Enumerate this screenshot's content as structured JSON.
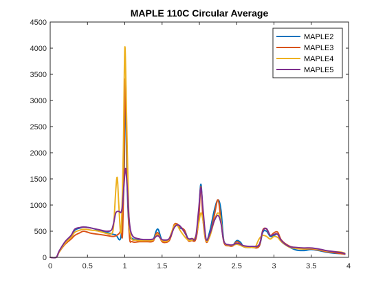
{
  "chart_data": {
    "type": "line",
    "title": "MAPLE 110C Circular Average",
    "xlabel": "",
    "ylabel": "",
    "xlim": [
      0,
      4
    ],
    "ylim": [
      0,
      4500
    ],
    "xticks": [
      "0",
      "0.5",
      "1",
      "1.5",
      "2",
      "2.5",
      "3",
      "3.5",
      "4"
    ],
    "yticks": [
      "0",
      "500",
      "1000",
      "1500",
      "2000",
      "2500",
      "3000",
      "3500",
      "4000",
      "4500"
    ],
    "grid": false,
    "legend_position": "top-right",
    "series": [
      {
        "name": "MAPLE2",
        "color": "#0072BD",
        "points": [
          [
            0,
            0
          ],
          [
            0.08,
            0
          ],
          [
            0.12,
            100
          ],
          [
            0.2,
            280
          ],
          [
            0.28,
            400
          ],
          [
            0.33,
            520
          ],
          [
            0.4,
            560
          ],
          [
            0.45,
            580
          ],
          [
            0.55,
            560
          ],
          [
            0.65,
            520
          ],
          [
            0.75,
            480
          ],
          [
            0.82,
            450
          ],
          [
            0.88,
            430
          ],
          [
            0.95,
            410
          ],
          [
            0.99,
            1500
          ],
          [
            1.01,
            3300
          ],
          [
            1.03,
            1500
          ],
          [
            1.06,
            500
          ],
          [
            1.1,
            360
          ],
          [
            1.2,
            340
          ],
          [
            1.3,
            330
          ],
          [
            1.38,
            340
          ],
          [
            1.42,
            500
          ],
          [
            1.45,
            530
          ],
          [
            1.5,
            330
          ],
          [
            1.58,
            320
          ],
          [
            1.62,
            430
          ],
          [
            1.66,
            590
          ],
          [
            1.7,
            620
          ],
          [
            1.74,
            560
          ],
          [
            1.8,
            520
          ],
          [
            1.85,
            350
          ],
          [
            1.9,
            340
          ],
          [
            1.95,
            360
          ],
          [
            1.99,
            800
          ],
          [
            2.02,
            1400
          ],
          [
            2.05,
            800
          ],
          [
            2.09,
            330
          ],
          [
            2.14,
            500
          ],
          [
            2.2,
            900
          ],
          [
            2.25,
            1100
          ],
          [
            2.29,
            900
          ],
          [
            2.33,
            300
          ],
          [
            2.4,
            230
          ],
          [
            2.45,
            230
          ],
          [
            2.5,
            320
          ],
          [
            2.55,
            290
          ],
          [
            2.6,
            200
          ],
          [
            2.7,
            190
          ],
          [
            2.8,
            210
          ],
          [
            2.85,
            480
          ],
          [
            2.9,
            500
          ],
          [
            2.95,
            400
          ],
          [
            3.0,
            420
          ],
          [
            3.05,
            440
          ],
          [
            3.1,
            300
          ],
          [
            3.2,
            200
          ],
          [
            3.3,
            140
          ],
          [
            3.4,
            130
          ],
          [
            3.5,
            150
          ],
          [
            3.6,
            130
          ],
          [
            3.7,
            100
          ],
          [
            3.8,
            80
          ],
          [
            3.9,
            70
          ],
          [
            3.95,
            60
          ]
        ]
      },
      {
        "name": "MAPLE3",
        "color": "#D95319",
        "points": [
          [
            0,
            0
          ],
          [
            0.08,
            0
          ],
          [
            0.12,
            100
          ],
          [
            0.2,
            250
          ],
          [
            0.28,
            350
          ],
          [
            0.33,
            420
          ],
          [
            0.4,
            470
          ],
          [
            0.45,
            500
          ],
          [
            0.55,
            460
          ],
          [
            0.65,
            440
          ],
          [
            0.75,
            420
          ],
          [
            0.85,
            400
          ],
          [
            0.92,
            450
          ],
          [
            0.95,
            520
          ],
          [
            0.97,
            450
          ],
          [
            0.99,
            1800
          ],
          [
            1.01,
            3420
          ],
          [
            1.03,
            1800
          ],
          [
            1.06,
            450
          ],
          [
            1.1,
            300
          ],
          [
            1.2,
            300
          ],
          [
            1.3,
            300
          ],
          [
            1.38,
            310
          ],
          [
            1.42,
            450
          ],
          [
            1.45,
            460
          ],
          [
            1.5,
            300
          ],
          [
            1.58,
            300
          ],
          [
            1.62,
            400
          ],
          [
            1.66,
            620
          ],
          [
            1.7,
            640
          ],
          [
            1.74,
            580
          ],
          [
            1.8,
            520
          ],
          [
            1.85,
            320
          ],
          [
            1.9,
            320
          ],
          [
            1.95,
            340
          ],
          [
            1.99,
            700
          ],
          [
            2.02,
            1350
          ],
          [
            2.05,
            700
          ],
          [
            2.09,
            300
          ],
          [
            2.14,
            420
          ],
          [
            2.2,
            800
          ],
          [
            2.25,
            1100
          ],
          [
            2.29,
            700
          ],
          [
            2.33,
            280
          ],
          [
            2.4,
            220
          ],
          [
            2.45,
            220
          ],
          [
            2.5,
            300
          ],
          [
            2.55,
            260
          ],
          [
            2.6,
            200
          ],
          [
            2.7,
            190
          ],
          [
            2.8,
            210
          ],
          [
            2.85,
            520
          ],
          [
            2.9,
            540
          ],
          [
            2.95,
            420
          ],
          [
            3.0,
            470
          ],
          [
            3.05,
            480
          ],
          [
            3.1,
            330
          ],
          [
            3.2,
            220
          ],
          [
            3.3,
            180
          ],
          [
            3.4,
            160
          ],
          [
            3.5,
            160
          ],
          [
            3.6,
            140
          ],
          [
            3.7,
            110
          ],
          [
            3.8,
            90
          ],
          [
            3.9,
            70
          ],
          [
            3.95,
            60
          ]
        ]
      },
      {
        "name": "MAPLE4",
        "color": "#EDB120",
        "points": [
          [
            0,
            0
          ],
          [
            0.08,
            0
          ],
          [
            0.12,
            100
          ],
          [
            0.2,
            270
          ],
          [
            0.28,
            380
          ],
          [
            0.33,
            480
          ],
          [
            0.4,
            520
          ],
          [
            0.45,
            540
          ],
          [
            0.55,
            520
          ],
          [
            0.65,
            500
          ],
          [
            0.75,
            460
          ],
          [
            0.82,
            450
          ],
          [
            0.85,
            600
          ],
          [
            0.88,
            1300
          ],
          [
            0.9,
            1520
          ],
          [
            0.92,
            1000
          ],
          [
            0.95,
            500
          ],
          [
            0.98,
            2000
          ],
          [
            1.0,
            4000
          ],
          [
            1.02,
            3000
          ],
          [
            1.05,
            1000
          ],
          [
            1.08,
            400
          ],
          [
            1.15,
            330
          ],
          [
            1.2,
            320
          ],
          [
            1.3,
            320
          ],
          [
            1.38,
            330
          ],
          [
            1.42,
            420
          ],
          [
            1.45,
            430
          ],
          [
            1.5,
            320
          ],
          [
            1.58,
            320
          ],
          [
            1.62,
            450
          ],
          [
            1.66,
            600
          ],
          [
            1.7,
            620
          ],
          [
            1.74,
            520
          ],
          [
            1.8,
            400
          ],
          [
            1.85,
            330
          ],
          [
            1.9,
            330
          ],
          [
            1.95,
            400
          ],
          [
            1.99,
            650
          ],
          [
            2.02,
            850
          ],
          [
            2.05,
            700
          ],
          [
            2.09,
            320
          ],
          [
            2.14,
            400
          ],
          [
            2.2,
            700
          ],
          [
            2.25,
            850
          ],
          [
            2.29,
            700
          ],
          [
            2.33,
            300
          ],
          [
            2.4,
            230
          ],
          [
            2.45,
            230
          ],
          [
            2.5,
            250
          ],
          [
            2.55,
            230
          ],
          [
            2.6,
            200
          ],
          [
            2.7,
            190
          ],
          [
            2.75,
            200
          ],
          [
            2.8,
            350
          ],
          [
            2.85,
            420
          ],
          [
            2.9,
            400
          ],
          [
            2.95,
            350
          ],
          [
            3.0,
            400
          ],
          [
            3.05,
            380
          ],
          [
            3.1,
            300
          ],
          [
            3.2,
            200
          ],
          [
            3.3,
            170
          ],
          [
            3.4,
            160
          ],
          [
            3.5,
            170
          ],
          [
            3.6,
            150
          ],
          [
            3.7,
            120
          ],
          [
            3.8,
            110
          ],
          [
            3.9,
            100
          ],
          [
            3.95,
            80
          ]
        ]
      },
      {
        "name": "MAPLE5",
        "color": "#7E2F8E",
        "points": [
          [
            0,
            0
          ],
          [
            0.08,
            0
          ],
          [
            0.12,
            120
          ],
          [
            0.2,
            300
          ],
          [
            0.28,
            420
          ],
          [
            0.33,
            540
          ],
          [
            0.4,
            570
          ],
          [
            0.45,
            580
          ],
          [
            0.55,
            560
          ],
          [
            0.65,
            530
          ],
          [
            0.75,
            500
          ],
          [
            0.82,
            520
          ],
          [
            0.85,
            650
          ],
          [
            0.88,
            850
          ],
          [
            0.92,
            880
          ],
          [
            0.95,
            860
          ],
          [
            0.97,
            1000
          ],
          [
            0.99,
            1400
          ],
          [
            1.01,
            1700
          ],
          [
            1.03,
            1400
          ],
          [
            1.06,
            700
          ],
          [
            1.1,
            420
          ],
          [
            1.2,
            350
          ],
          [
            1.3,
            340
          ],
          [
            1.38,
            350
          ],
          [
            1.42,
            400
          ],
          [
            1.45,
            410
          ],
          [
            1.5,
            340
          ],
          [
            1.58,
            340
          ],
          [
            1.62,
            420
          ],
          [
            1.66,
            560
          ],
          [
            1.7,
            620
          ],
          [
            1.74,
            600
          ],
          [
            1.8,
            480
          ],
          [
            1.85,
            360
          ],
          [
            1.9,
            360
          ],
          [
            1.95,
            380
          ],
          [
            1.99,
            900
          ],
          [
            2.02,
            1330
          ],
          [
            2.05,
            900
          ],
          [
            2.09,
            350
          ],
          [
            2.14,
            450
          ],
          [
            2.2,
            700
          ],
          [
            2.25,
            800
          ],
          [
            2.29,
            650
          ],
          [
            2.33,
            300
          ],
          [
            2.4,
            240
          ],
          [
            2.45,
            240
          ],
          [
            2.5,
            270
          ],
          [
            2.55,
            250
          ],
          [
            2.6,
            220
          ],
          [
            2.7,
            210
          ],
          [
            2.8,
            240
          ],
          [
            2.85,
            500
          ],
          [
            2.9,
            550
          ],
          [
            2.95,
            420
          ],
          [
            3.0,
            440
          ],
          [
            3.05,
            440
          ],
          [
            3.1,
            320
          ],
          [
            3.2,
            210
          ],
          [
            3.3,
            190
          ],
          [
            3.4,
            180
          ],
          [
            3.5,
            180
          ],
          [
            3.6,
            160
          ],
          [
            3.7,
            130
          ],
          [
            3.8,
            110
          ],
          [
            3.9,
            90
          ],
          [
            3.95,
            70
          ]
        ]
      }
    ]
  }
}
